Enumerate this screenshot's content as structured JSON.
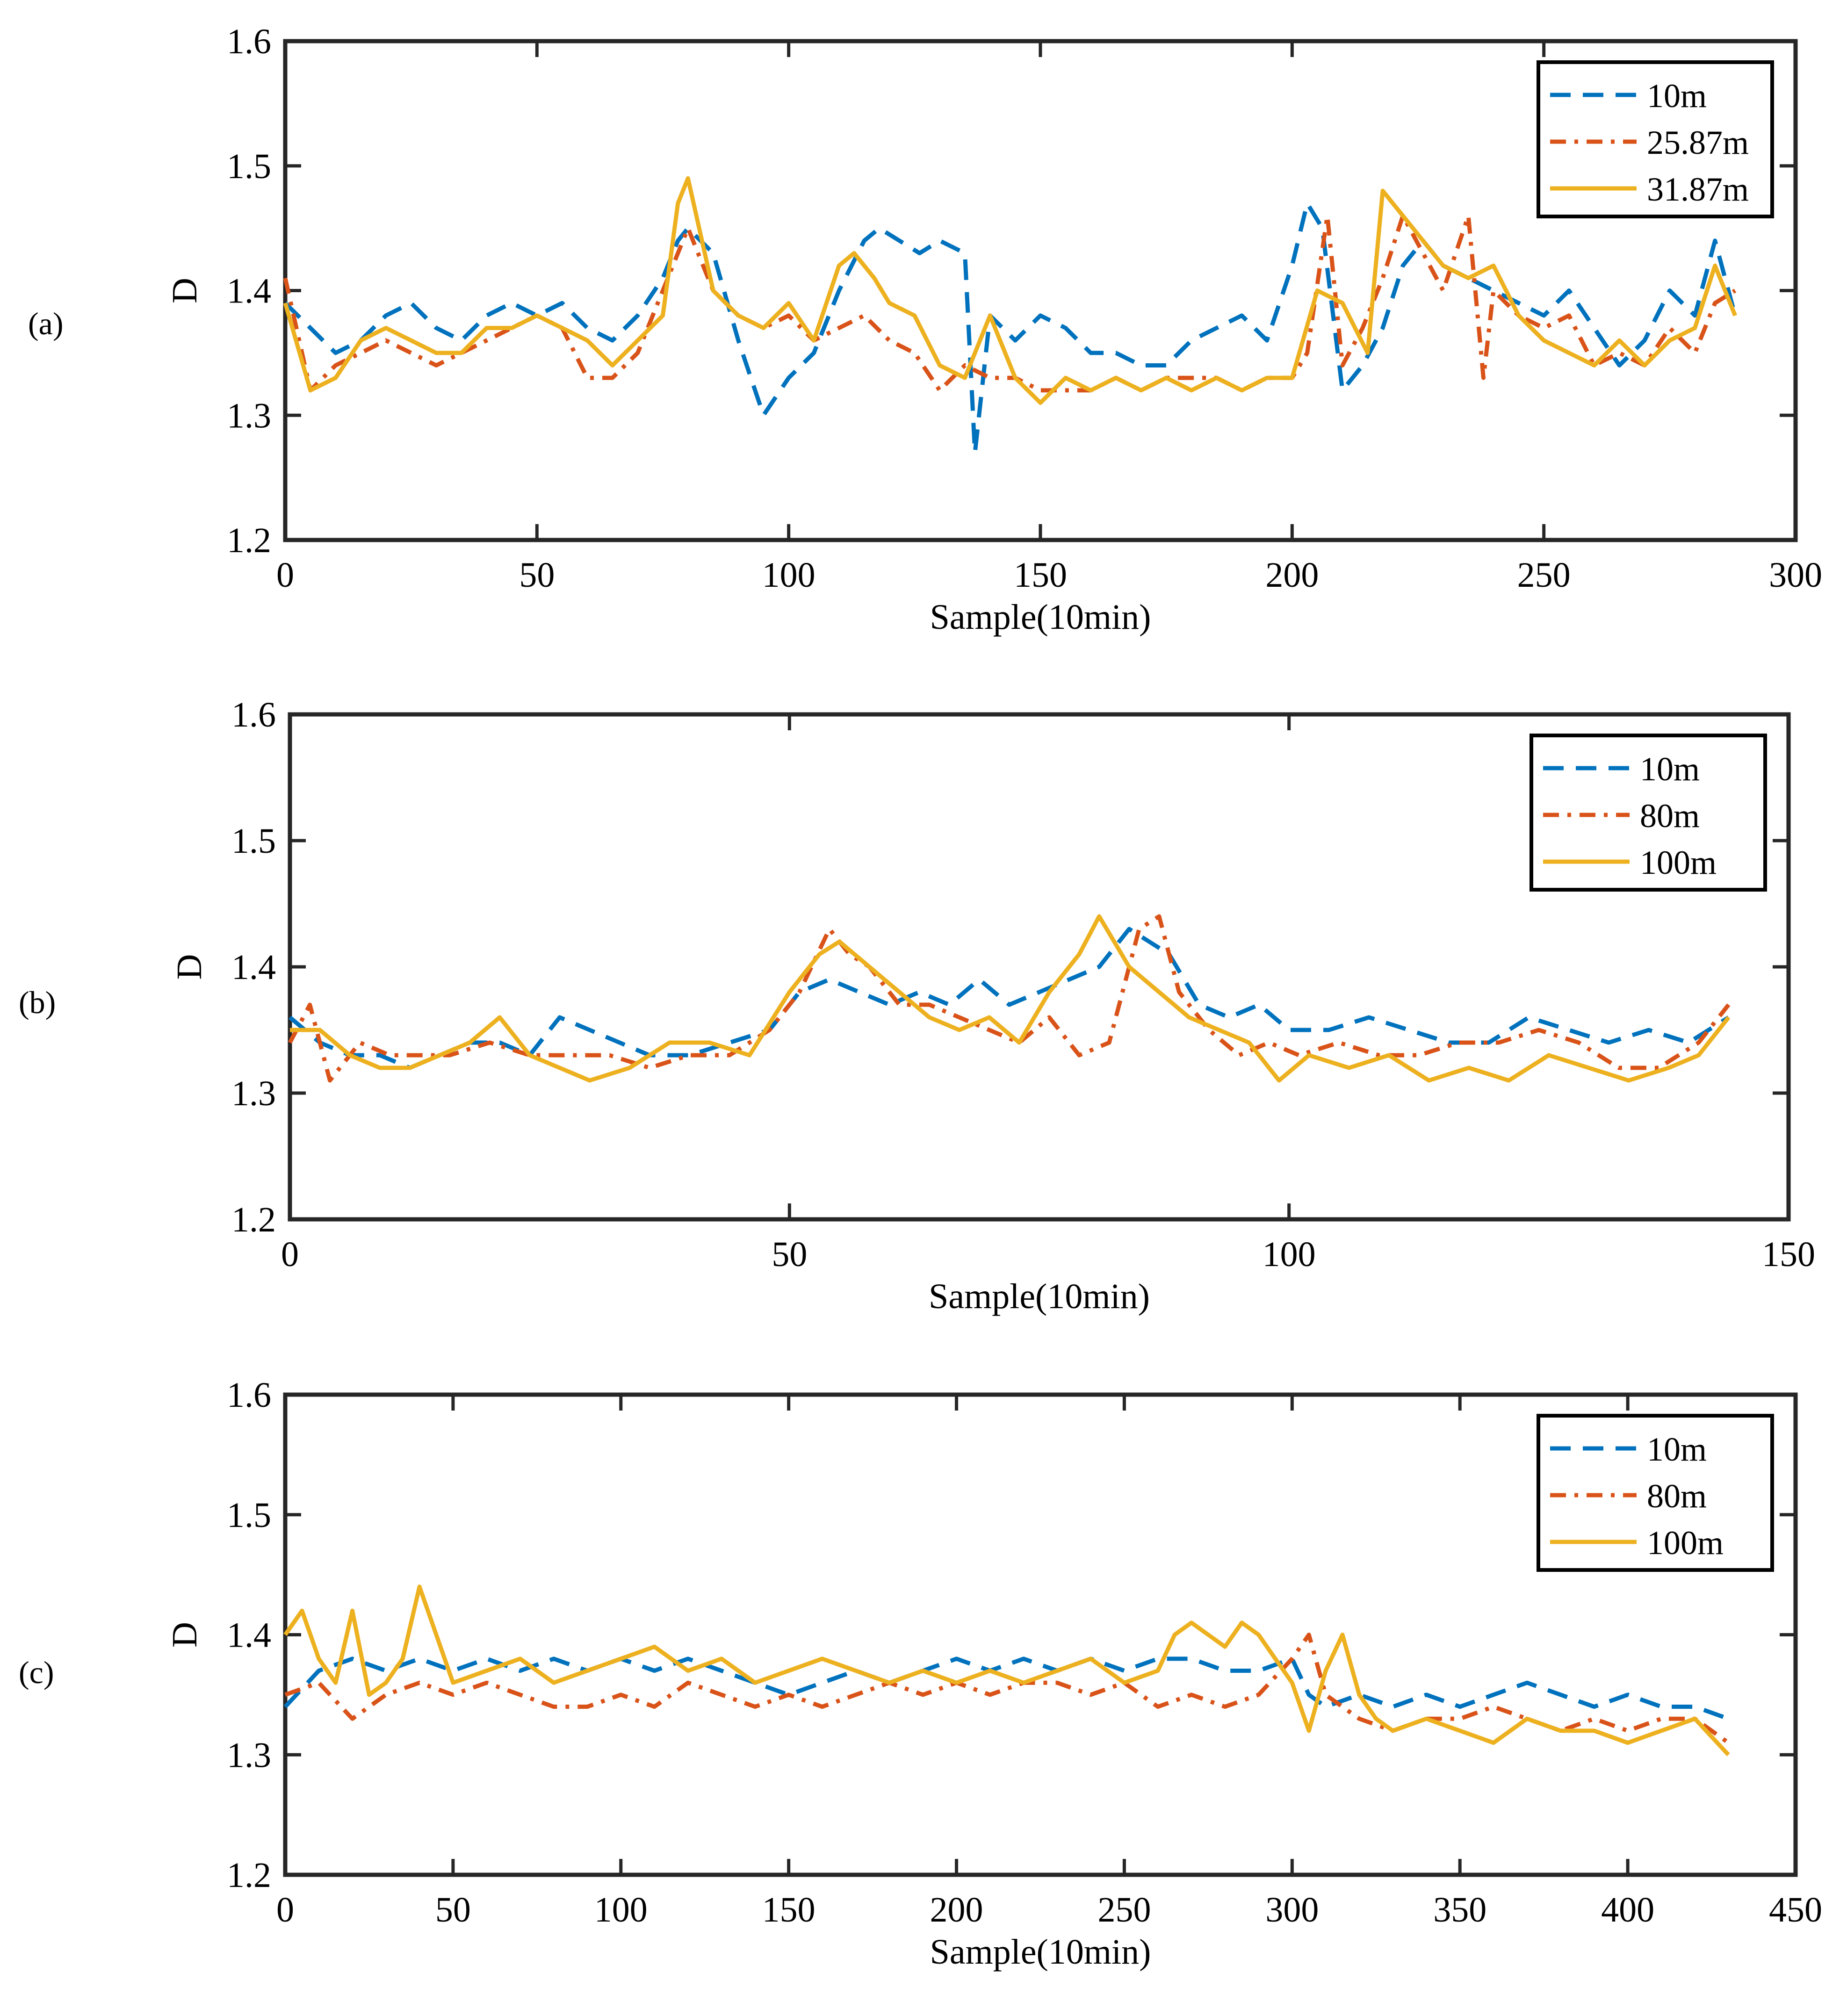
{
  "figure": {
    "description_labels": [
      "(a)",
      "(b)",
      "(c)"
    ]
  },
  "colors": {
    "blue": "#0072BD",
    "orange": "#D95319",
    "yellow": "#EDB120",
    "axis": "#262626"
  },
  "chart_data": [
    {
      "panel_label": "(a)",
      "type": "line",
      "xlabel": "Sample(10min)",
      "ylabel": "D",
      "xlim": [
        0,
        300
      ],
      "ylim": [
        1.2,
        1.6
      ],
      "xticks": [
        "0",
        "50",
        "100",
        "150",
        "200",
        "250",
        "300"
      ],
      "yticks": [
        "1.2",
        "1.3",
        "1.4",
        "1.5",
        "1.6"
      ],
      "legend_position": "top-right",
      "series": [
        {
          "name": "10m",
          "style": "dashed",
          "color": "#0072BD",
          "x": [
            0,
            5,
            10,
            15,
            20,
            25,
            30,
            35,
            40,
            45,
            50,
            55,
            60,
            65,
            70,
            75,
            78,
            80,
            85,
            90,
            95,
            100,
            105,
            110,
            115,
            118,
            122,
            126,
            130,
            135,
            137,
            140,
            145,
            150,
            155,
            160,
            165,
            170,
            175,
            180,
            185,
            190,
            195,
            200,
            203,
            206,
            210,
            214,
            218,
            222,
            226,
            230,
            235,
            240,
            245,
            250,
            255,
            260,
            265,
            270,
            275,
            280,
            284,
            288
          ],
          "values": [
            1.39,
            1.37,
            1.35,
            1.36,
            1.38,
            1.39,
            1.37,
            1.36,
            1.38,
            1.39,
            1.38,
            1.39,
            1.37,
            1.36,
            1.38,
            1.41,
            1.44,
            1.45,
            1.43,
            1.36,
            1.3,
            1.33,
            1.35,
            1.4,
            1.44,
            1.45,
            1.44,
            1.43,
            1.44,
            1.43,
            1.27,
            1.38,
            1.36,
            1.38,
            1.37,
            1.35,
            1.35,
            1.34,
            1.34,
            1.36,
            1.37,
            1.38,
            1.36,
            1.42,
            1.47,
            1.45,
            1.32,
            1.34,
            1.37,
            1.42,
            1.44,
            1.42,
            1.41,
            1.4,
            1.39,
            1.38,
            1.4,
            1.37,
            1.34,
            1.36,
            1.4,
            1.38,
            1.44,
            1.38
          ]
        },
        {
          "name": "25.87m",
          "style": "dashdot",
          "color": "#D95319",
          "x": [
            0,
            5,
            10,
            15,
            20,
            25,
            30,
            35,
            40,
            45,
            50,
            55,
            60,
            65,
            70,
            75,
            78,
            80,
            85,
            90,
            95,
            100,
            105,
            110,
            115,
            120,
            125,
            130,
            135,
            140,
            145,
            150,
            155,
            160,
            165,
            170,
            175,
            180,
            185,
            190,
            195,
            200,
            203,
            207,
            210,
            214,
            218,
            222,
            226,
            230,
            235,
            238,
            240,
            245,
            250,
            255,
            260,
            265,
            270,
            275,
            280,
            284,
            288
          ],
          "values": [
            1.41,
            1.32,
            1.34,
            1.35,
            1.36,
            1.35,
            1.34,
            1.35,
            1.36,
            1.37,
            1.38,
            1.37,
            1.33,
            1.33,
            1.35,
            1.4,
            1.43,
            1.45,
            1.4,
            1.38,
            1.37,
            1.38,
            1.36,
            1.37,
            1.38,
            1.36,
            1.35,
            1.32,
            1.34,
            1.33,
            1.33,
            1.32,
            1.32,
            1.32,
            1.33,
            1.32,
            1.33,
            1.33,
            1.33,
            1.32,
            1.33,
            1.33,
            1.35,
            1.46,
            1.34,
            1.37,
            1.41,
            1.46,
            1.43,
            1.4,
            1.46,
            1.33,
            1.4,
            1.38,
            1.37,
            1.38,
            1.34,
            1.35,
            1.34,
            1.37,
            1.35,
            1.39,
            1.4
          ]
        },
        {
          "name": "31.87m",
          "style": "solid",
          "color": "#EDB120",
          "x": [
            0,
            5,
            10,
            15,
            20,
            25,
            30,
            35,
            40,
            45,
            50,
            55,
            60,
            65,
            70,
            75,
            78,
            80,
            85,
            90,
            95,
            100,
            105,
            110,
            113,
            117,
            120,
            125,
            130,
            135,
            140,
            145,
            150,
            155,
            160,
            165,
            170,
            175,
            180,
            185,
            190,
            195,
            200,
            205,
            210,
            215,
            218,
            222,
            226,
            230,
            235,
            240,
            245,
            250,
            255,
            260,
            265,
            270,
            275,
            280,
            284,
            288
          ],
          "values": [
            1.39,
            1.32,
            1.33,
            1.36,
            1.37,
            1.36,
            1.35,
            1.35,
            1.37,
            1.37,
            1.38,
            1.37,
            1.36,
            1.34,
            1.36,
            1.38,
            1.47,
            1.49,
            1.4,
            1.38,
            1.37,
            1.39,
            1.36,
            1.42,
            1.43,
            1.41,
            1.39,
            1.38,
            1.34,
            1.33,
            1.38,
            1.33,
            1.31,
            1.33,
            1.32,
            1.33,
            1.32,
            1.33,
            1.32,
            1.33,
            1.32,
            1.33,
            1.33,
            1.4,
            1.39,
            1.35,
            1.48,
            1.46,
            1.44,
            1.42,
            1.41,
            1.42,
            1.38,
            1.36,
            1.35,
            1.34,
            1.36,
            1.34,
            1.36,
            1.37,
            1.42,
            1.38
          ]
        }
      ]
    },
    {
      "panel_label": "(b)",
      "type": "line",
      "xlabel": "Sample(10min)",
      "ylabel": "D",
      "xlim": [
        0,
        150
      ],
      "ylim": [
        1.2,
        1.6
      ],
      "xticks": [
        "0",
        "50",
        "100",
        "150"
      ],
      "yticks": [
        "1.2",
        "1.3",
        "1.4",
        "1.5",
        "1.6"
      ],
      "legend_position": "top-right",
      "series": [
        {
          "name": "10m",
          "style": "dashed",
          "color": "#0072BD",
          "x": [
            0,
            3,
            6,
            9,
            12,
            15,
            18,
            21,
            24,
            27,
            30,
            33,
            36,
            40,
            44,
            48,
            51,
            54,
            57,
            60,
            63,
            66,
            69,
            72,
            75,
            78,
            81,
            84,
            86,
            88,
            91,
            94,
            97,
            100,
            104,
            108,
            112,
            116,
            120,
            124,
            128,
            132,
            136,
            140,
            144
          ],
          "values": [
            1.36,
            1.34,
            1.33,
            1.33,
            1.32,
            1.33,
            1.34,
            1.34,
            1.33,
            1.36,
            1.35,
            1.34,
            1.33,
            1.33,
            1.34,
            1.35,
            1.38,
            1.39,
            1.38,
            1.37,
            1.38,
            1.37,
            1.39,
            1.37,
            1.38,
            1.39,
            1.4,
            1.43,
            1.42,
            1.41,
            1.37,
            1.36,
            1.37,
            1.35,
            1.35,
            1.36,
            1.35,
            1.34,
            1.34,
            1.36,
            1.35,
            1.34,
            1.35,
            1.34,
            1.36
          ]
        },
        {
          "name": "80m",
          "style": "dashdot",
          "color": "#D95319",
          "x": [
            0,
            2,
            4,
            7,
            10,
            13,
            16,
            20,
            24,
            28,
            32,
            36,
            40,
            44,
            48,
            51,
            54,
            56,
            58,
            61,
            64,
            67,
            70,
            73,
            76,
            79,
            82,
            85,
            87,
            89,
            92,
            95,
            98,
            101,
            105,
            109,
            113,
            117,
            121,
            125,
            129,
            133,
            137,
            141,
            144
          ],
          "values": [
            1.34,
            1.37,
            1.31,
            1.34,
            1.33,
            1.33,
            1.33,
            1.34,
            1.33,
            1.33,
            1.33,
            1.32,
            1.33,
            1.33,
            1.35,
            1.38,
            1.43,
            1.41,
            1.4,
            1.37,
            1.37,
            1.36,
            1.35,
            1.34,
            1.36,
            1.33,
            1.34,
            1.43,
            1.44,
            1.38,
            1.35,
            1.33,
            1.34,
            1.33,
            1.34,
            1.33,
            1.33,
            1.34,
            1.34,
            1.35,
            1.34,
            1.32,
            1.32,
            1.34,
            1.37
          ]
        },
        {
          "name": "100m",
          "style": "solid",
          "color": "#EDB120",
          "x": [
            0,
            3,
            6,
            9,
            12,
            15,
            18,
            21,
            24,
            27,
            30,
            34,
            38,
            42,
            46,
            50,
            53,
            55,
            58,
            61,
            64,
            67,
            70,
            73,
            76,
            79,
            81,
            84,
            87,
            90,
            93,
            96,
            99,
            102,
            106,
            110,
            114,
            118,
            122,
            126,
            130,
            134,
            138,
            141,
            144
          ],
          "values": [
            1.35,
            1.35,
            1.33,
            1.32,
            1.32,
            1.33,
            1.34,
            1.36,
            1.33,
            1.32,
            1.31,
            1.32,
            1.34,
            1.34,
            1.33,
            1.38,
            1.41,
            1.42,
            1.4,
            1.38,
            1.36,
            1.35,
            1.36,
            1.34,
            1.38,
            1.41,
            1.44,
            1.4,
            1.38,
            1.36,
            1.35,
            1.34,
            1.31,
            1.33,
            1.32,
            1.33,
            1.31,
            1.32,
            1.31,
            1.33,
            1.32,
            1.31,
            1.32,
            1.33,
            1.36
          ]
        }
      ]
    },
    {
      "panel_label": "(c)",
      "type": "line",
      "xlabel": "Sample(10min)",
      "ylabel": "D",
      "xlim": [
        0,
        450
      ],
      "ylim": [
        1.2,
        1.6
      ],
      "xticks": [
        "0",
        "50",
        "100",
        "150",
        "200",
        "250",
        "300",
        "350",
        "400",
        "450"
      ],
      "yticks": [
        "1.2",
        "1.3",
        "1.4",
        "1.5",
        "1.6"
      ],
      "legend_position": "top-right",
      "series": [
        {
          "name": "10m",
          "style": "dashed",
          "color": "#0072BD",
          "x": [
            0,
            10,
            20,
            30,
            40,
            50,
            60,
            70,
            80,
            90,
            100,
            110,
            120,
            130,
            140,
            150,
            160,
            170,
            180,
            190,
            200,
            210,
            220,
            230,
            240,
            250,
            260,
            270,
            280,
            290,
            300,
            305,
            310,
            320,
            330,
            340,
            350,
            360,
            370,
            380,
            390,
            400,
            410,
            420,
            430
          ],
          "values": [
            1.34,
            1.37,
            1.38,
            1.37,
            1.38,
            1.37,
            1.38,
            1.37,
            1.38,
            1.37,
            1.38,
            1.37,
            1.38,
            1.37,
            1.36,
            1.35,
            1.36,
            1.37,
            1.36,
            1.37,
            1.38,
            1.37,
            1.38,
            1.37,
            1.38,
            1.37,
            1.38,
            1.38,
            1.37,
            1.37,
            1.38,
            1.35,
            1.34,
            1.35,
            1.34,
            1.35,
            1.34,
            1.35,
            1.36,
            1.35,
            1.34,
            1.35,
            1.34,
            1.34,
            1.33
          ]
        },
        {
          "name": "80m",
          "style": "dashdot",
          "color": "#D95319",
          "x": [
            0,
            10,
            20,
            30,
            40,
            50,
            60,
            70,
            80,
            90,
            100,
            110,
            120,
            130,
            140,
            150,
            160,
            170,
            180,
            190,
            200,
            210,
            220,
            230,
            240,
            250,
            260,
            270,
            280,
            290,
            300,
            305,
            310,
            320,
            330,
            340,
            350,
            360,
            370,
            380,
            390,
            400,
            410,
            420,
            430
          ],
          "values": [
            1.35,
            1.36,
            1.33,
            1.35,
            1.36,
            1.35,
            1.36,
            1.35,
            1.34,
            1.34,
            1.35,
            1.34,
            1.36,
            1.35,
            1.34,
            1.35,
            1.34,
            1.35,
            1.36,
            1.35,
            1.36,
            1.35,
            1.36,
            1.36,
            1.35,
            1.36,
            1.34,
            1.35,
            1.34,
            1.35,
            1.38,
            1.4,
            1.35,
            1.33,
            1.32,
            1.33,
            1.33,
            1.34,
            1.33,
            1.32,
            1.33,
            1.32,
            1.33,
            1.33,
            1.31
          ]
        },
        {
          "name": "100m",
          "style": "solid",
          "color": "#EDB120",
          "x": [
            0,
            5,
            10,
            15,
            20,
            25,
            30,
            35,
            40,
            45,
            50,
            60,
            70,
            80,
            90,
            100,
            110,
            120,
            130,
            140,
            150,
            160,
            170,
            180,
            190,
            200,
            210,
            220,
            230,
            240,
            250,
            260,
            265,
            270,
            275,
            280,
            285,
            290,
            295,
            300,
            305,
            310,
            315,
            320,
            325,
            330,
            340,
            350,
            360,
            370,
            380,
            390,
            400,
            410,
            420,
            430
          ],
          "values": [
            1.4,
            1.42,
            1.38,
            1.36,
            1.42,
            1.35,
            1.36,
            1.38,
            1.44,
            1.4,
            1.36,
            1.37,
            1.38,
            1.36,
            1.37,
            1.38,
            1.39,
            1.37,
            1.38,
            1.36,
            1.37,
            1.38,
            1.37,
            1.36,
            1.37,
            1.36,
            1.37,
            1.36,
            1.37,
            1.38,
            1.36,
            1.37,
            1.4,
            1.41,
            1.4,
            1.39,
            1.41,
            1.4,
            1.38,
            1.36,
            1.32,
            1.37,
            1.4,
            1.35,
            1.33,
            1.32,
            1.33,
            1.32,
            1.31,
            1.33,
            1.32,
            1.32,
            1.31,
            1.32,
            1.33,
            1.3
          ]
        }
      ]
    }
  ]
}
